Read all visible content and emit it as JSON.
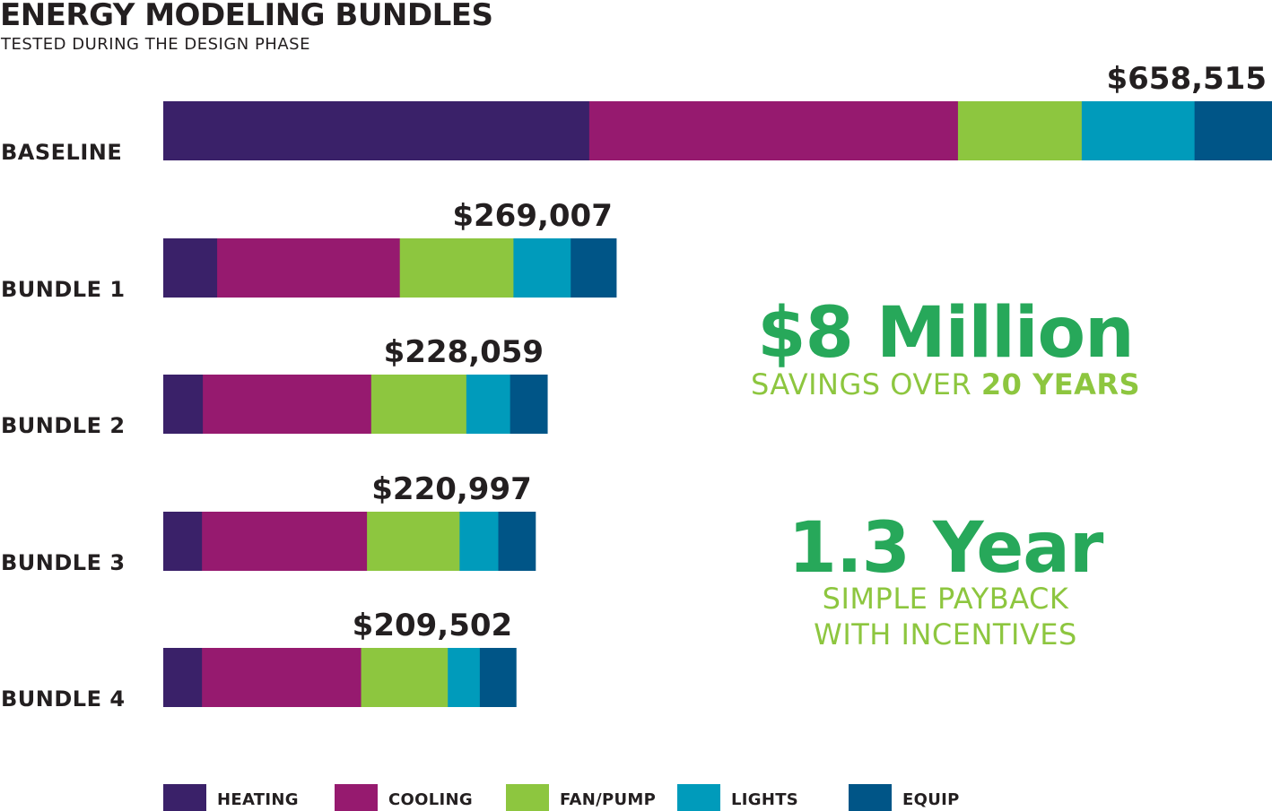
{
  "chart_data": {
    "type": "bar",
    "orientation": "horizontal",
    "stacked": true,
    "title": "ENERGY MODELING BUNDLES",
    "subtitle": "TESTED DURING THE DESIGN PHASE",
    "categories": [
      "BASELINE",
      "BUNDLE 1",
      "BUNDLE 2",
      "BUNDLE 3",
      "BUNDLE 4"
    ],
    "totals": [
      658515,
      269007,
      228059,
      220997,
      209502
    ],
    "total_labels": [
      "$658,515",
      "$269,007",
      "$228,059",
      "$220,997",
      "$209,502"
    ],
    "series": [
      {
        "name": "HEATING",
        "color": "#3a2169",
        "values": [
          253000,
          32000,
          23500,
          23000,
          23000
        ]
      },
      {
        "name": "COOLING",
        "color": "#961a6f",
        "values": [
          219000,
          108500,
          100000,
          98000,
          94500
        ]
      },
      {
        "name": "FAN/PUMP",
        "color": "#8dc63f",
        "values": [
          73500,
          67500,
          56500,
          55000,
          51500
        ]
      },
      {
        "name": "LIGHTS",
        "color": "#009bbb",
        "values": [
          67000,
          34000,
          26000,
          23000,
          19000
        ]
      },
      {
        "name": "EQUIP",
        "color": "#005587",
        "values": [
          46015,
          27007,
          22059,
          21997,
          21502
        ]
      }
    ],
    "xlim": [
      0,
      658515
    ],
    "grid": false,
    "legend": "bottom",
    "callouts": [
      {
        "headline": "$8 Million",
        "line1_regular": "SAVINGS OVER ",
        "line1_bold": "20 YEARS"
      },
      {
        "headline": "1.3 Year",
        "line1": "SIMPLE PAYBACK",
        "line2": "WITH INCENTIVES"
      }
    ]
  }
}
